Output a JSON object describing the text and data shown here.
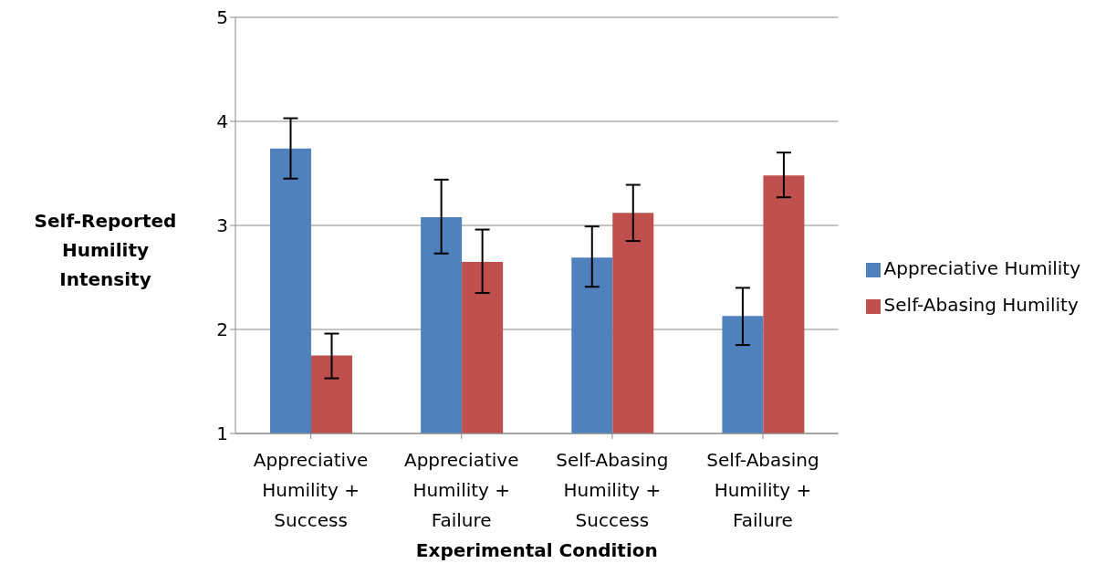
{
  "chart_data": {
    "type": "bar",
    "xlabel": "Experimental Condition",
    "ylabel": "Self-Reported Humility Intensity",
    "categories": [
      "Appreciative Humility + Success",
      "Appreciative Humility + Failure",
      "Self-Abasing Humility + Success",
      "Self-Abasing Humility + Failure"
    ],
    "series": [
      {
        "name": "Appreciative Humility",
        "color": "#4f81bd",
        "values": [
          3.74,
          3.08,
          2.69,
          2.13
        ],
        "errors": [
          [
            3.45,
            4.03
          ],
          [
            2.73,
            3.44
          ],
          [
            2.41,
            2.99
          ],
          [
            1.85,
            2.4
          ]
        ]
      },
      {
        "name": "Self-Abasing Humility",
        "color": "#c0504d",
        "values": [
          1.75,
          2.65,
          3.12,
          3.48
        ],
        "errors": [
          [
            1.53,
            1.96
          ],
          [
            2.35,
            2.96
          ],
          [
            2.85,
            3.39
          ],
          [
            3.27,
            3.7
          ]
        ]
      }
    ],
    "ylim": [
      1,
      5
    ],
    "yticks": [
      1,
      2,
      3,
      4,
      5
    ],
    "grid": "y",
    "legend": "right"
  }
}
